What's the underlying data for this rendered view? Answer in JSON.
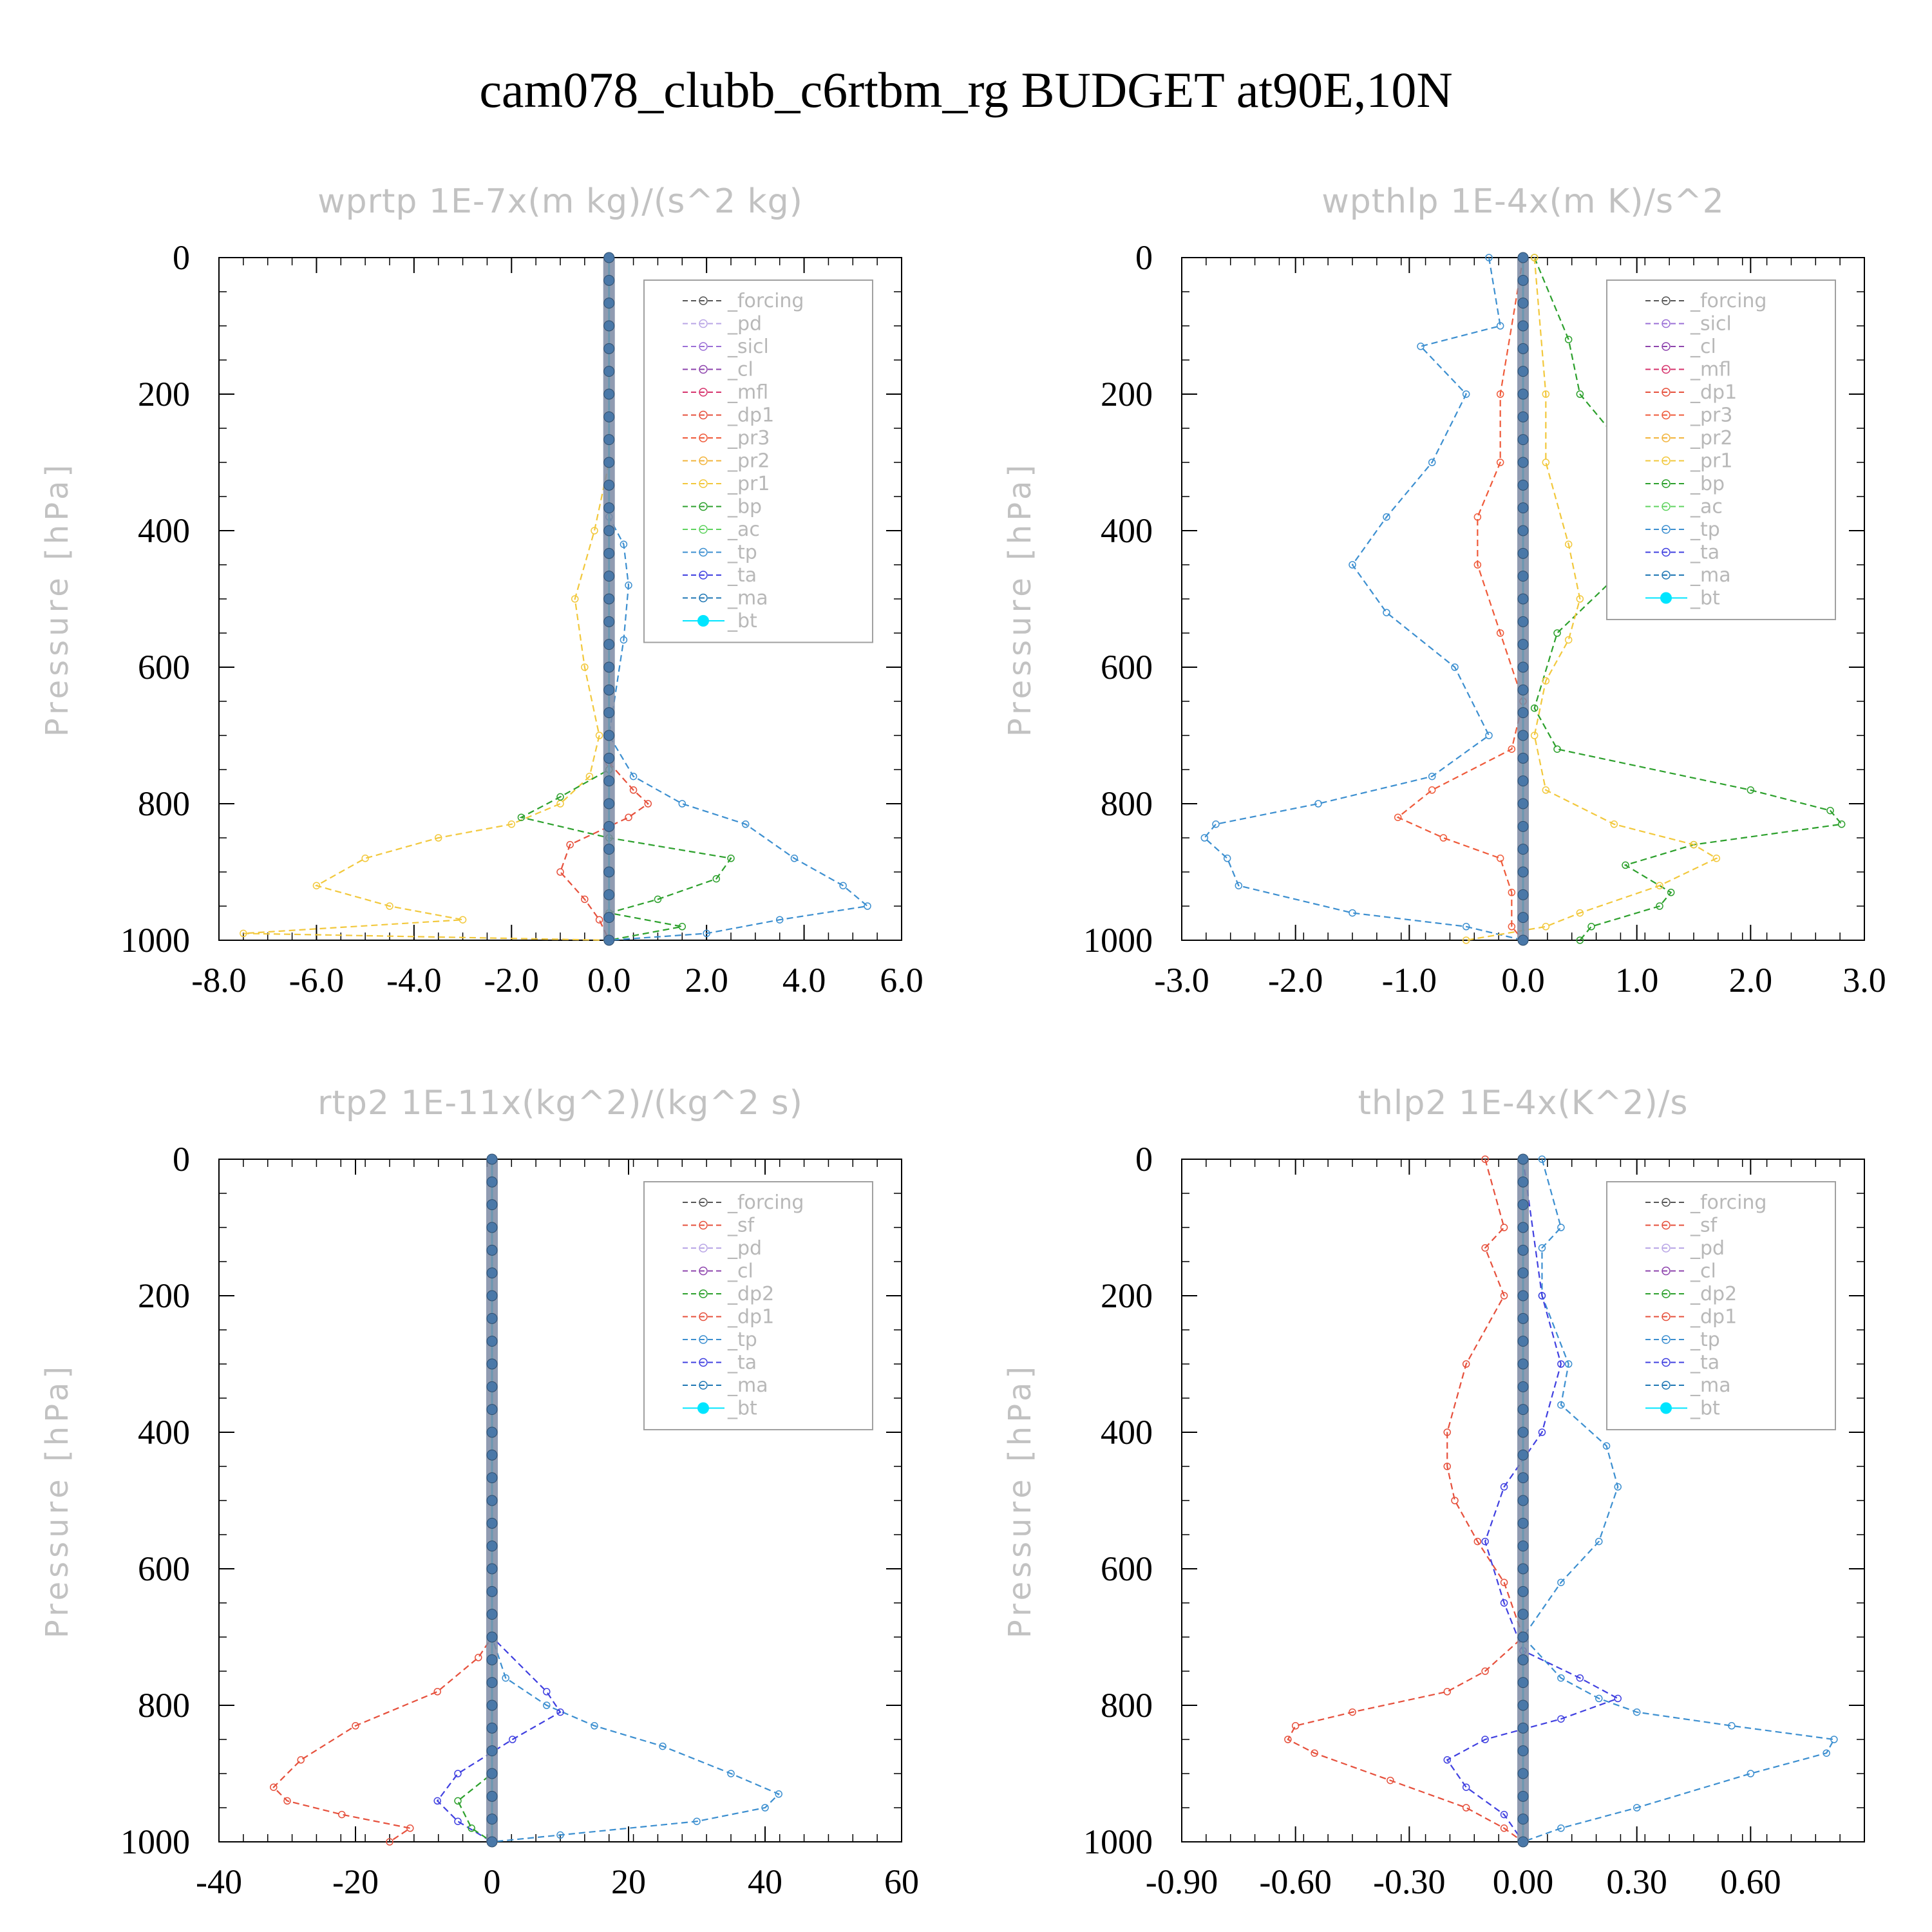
{
  "title": "cam078_clubb_c6rtbm_rg  BUDGET at90E,10N",
  "colors": {
    "forcing": "#555555",
    "pd": "#b9a6e6",
    "sicl": "#9b6fd6",
    "cl": "#8e44ad",
    "mfl": "#d6336c",
    "dp1": "#e6503c",
    "pr3": "#ef5a3a",
    "pr2": "#f2b43c",
    "pr1": "#f2c83c",
    "bp": "#2ca02c",
    "ac": "#5fd35f",
    "tp": "#3c8fd0",
    "ta": "#4040e0",
    "ma": "#1f77b4",
    "bt": "#00e5ff",
    "sf": "#e6503c",
    "dp2": "#2ca02c"
  },
  "chart_data": [
    {
      "type": "line",
      "title": "wprtp  1E-7x(m kg)/(s^2 kg)",
      "ylabel": "Pressure [hPa]",
      "xlim": [
        -8,
        6
      ],
      "ylim": [
        1000,
        0
      ],
      "xticks": [
        "-8.0",
        "-6.0",
        "-4.0",
        "-2.0",
        "0.0",
        "2.0",
        "4.0",
        "6.0"
      ],
      "yticks": [
        "0",
        "200",
        "400",
        "600",
        "800",
        "1000"
      ],
      "legend_position": "upper-right",
      "legend": [
        "_forcing",
        "_pd",
        "_sicl",
        "_cl",
        "_mfl",
        "_dp1",
        "_pr3",
        "_pr2",
        "_pr1",
        "_bp",
        "_ac",
        "_tp",
        "_ta",
        "_ma",
        "_bt"
      ],
      "series": [
        {
          "name": "_pr1",
          "y": [
            0,
            300,
            400,
            500,
            600,
            700,
            760,
            800,
            830,
            850,
            880,
            920,
            950,
            970,
            990,
            1000
          ],
          "x": [
            0,
            0,
            -0.3,
            -0.7,
            -0.5,
            -0.2,
            -0.4,
            -1.0,
            -2.0,
            -3.5,
            -5.0,
            -6.0,
            -4.5,
            -3.0,
            -7.5,
            0
          ]
        },
        {
          "name": "_bp",
          "y": [
            0,
            700,
            750,
            790,
            820,
            850,
            880,
            910,
            940,
            960,
            980,
            1000
          ],
          "x": [
            0,
            0,
            0,
            -1.0,
            -1.8,
            0,
            2.5,
            2.2,
            1.0,
            0,
            1.5,
            0
          ]
        },
        {
          "name": "_dp1",
          "y": [
            0,
            740,
            780,
            800,
            820,
            860,
            900,
            940,
            970,
            1000
          ],
          "x": [
            0,
            0,
            0.5,
            0.8,
            0.4,
            -0.8,
            -1.0,
            -0.5,
            -0.2,
            0
          ]
        },
        {
          "name": "_tp",
          "y": [
            0,
            380,
            420,
            480,
            560,
            700,
            760,
            800,
            830,
            880,
            920,
            950,
            970,
            990,
            1000
          ],
          "x": [
            0,
            0,
            0.3,
            0.4,
            0.3,
            0,
            0.5,
            1.5,
            2.8,
            3.8,
            4.8,
            5.3,
            3.5,
            2.0,
            0
          ]
        },
        {
          "name": "_bt",
          "y": [
            0,
            1000
          ],
          "x": [
            0,
            0
          ]
        }
      ]
    },
    {
      "type": "line",
      "title": "wpthlp  1E-4x(m K)/s^2",
      "ylabel": "Pressure [hPa]",
      "xlim": [
        -3,
        3
      ],
      "ylim": [
        1000,
        0
      ],
      "xticks": [
        "-3.0",
        "-2.0",
        "-1.0",
        "0.0",
        "1.0",
        "2.0",
        "3.0"
      ],
      "yticks": [
        "0",
        "200",
        "400",
        "600",
        "800",
        "1000"
      ],
      "legend_position": "upper-right",
      "legend": [
        "_forcing",
        "_sicl",
        "_cl",
        "_mfl",
        "_dp1",
        "_pr3",
        "_pr2",
        "_pr1",
        "_bp",
        "_ac",
        "_tp",
        "_ta",
        "_ma",
        "_bt"
      ],
      "series": [
        {
          "name": "_tp",
          "y": [
            0,
            100,
            130,
            200,
            300,
            380,
            450,
            520,
            600,
            700,
            760,
            800,
            830,
            850,
            880,
            920,
            960,
            980,
            1000
          ],
          "x": [
            -0.3,
            -0.2,
            -0.9,
            -0.5,
            -0.8,
            -1.2,
            -1.5,
            -1.2,
            -0.6,
            -0.3,
            -0.8,
            -1.8,
            -2.7,
            -2.8,
            -2.6,
            -2.5,
            -1.5,
            -0.5,
            0
          ]
        },
        {
          "name": "_bp",
          "y": [
            0,
            120,
            200,
            300,
            400,
            470,
            550,
            660,
            720,
            780,
            810,
            830,
            860,
            890,
            930,
            950,
            980,
            1000
          ],
          "x": [
            0.1,
            0.4,
            0.5,
            1.0,
            1.2,
            0.8,
            0.3,
            0.1,
            0.3,
            2.0,
            2.7,
            2.8,
            1.5,
            0.9,
            1.3,
            1.2,
            0.6,
            0.5
          ]
        },
        {
          "name": "_pr1",
          "y": [
            0,
            200,
            300,
            420,
            500,
            560,
            620,
            700,
            780,
            830,
            860,
            880,
            920,
            960,
            980,
            1000
          ],
          "x": [
            0.1,
            0.2,
            0.2,
            0.4,
            0.5,
            0.4,
            0.2,
            0.1,
            0.2,
            0.8,
            1.5,
            1.7,
            1.2,
            0.5,
            0.2,
            -0.5
          ]
        },
        {
          "name": "_pr3",
          "y": [
            0,
            200,
            300,
            380,
            450,
            550,
            650,
            720,
            780,
            820,
            850,
            880,
            930,
            980,
            1000
          ],
          "x": [
            0,
            -0.2,
            -0.2,
            -0.4,
            -0.4,
            -0.2,
            0,
            -0.1,
            -0.8,
            -1.1,
            -0.7,
            -0.2,
            -0.1,
            -0.1,
            0
          ]
        },
        {
          "name": "_bt",
          "y": [
            0,
            1000
          ],
          "x": [
            0,
            0
          ]
        }
      ]
    },
    {
      "type": "line",
      "title": "rtp2  1E-11x(kg^2)/(kg^2 s)",
      "ylabel": "Pressure [hPa]",
      "xlim": [
        -40,
        60
      ],
      "ylim": [
        1000,
        0
      ],
      "xticks": [
        "-40",
        "-20",
        "0",
        "20",
        "40",
        "60"
      ],
      "yticks": [
        "0",
        "200",
        "400",
        "600",
        "800",
        "1000"
      ],
      "legend_position": "upper-right",
      "legend": [
        "_forcing",
        "_sf",
        "_pd",
        "_cl",
        "_dp2",
        "_dp1",
        "_tp",
        "_ta",
        "_ma",
        "_bt"
      ],
      "series": [
        {
          "name": "_dp1",
          "y": [
            0,
            700,
            730,
            780,
            830,
            880,
            920,
            940,
            960,
            980,
            1000
          ],
          "x": [
            0,
            0,
            -2,
            -8,
            -20,
            -28,
            -32,
            -30,
            -22,
            -12,
            -15
          ]
        },
        {
          "name": "_tp",
          "y": [
            0,
            700,
            760,
            800,
            830,
            860,
            900,
            930,
            950,
            970,
            990,
            1000
          ],
          "x": [
            0,
            0,
            2,
            8,
            15,
            25,
            35,
            42,
            40,
            30,
            10,
            0
          ]
        },
        {
          "name": "_ta",
          "y": [
            0,
            700,
            780,
            810,
            850,
            900,
            940,
            970,
            1000
          ],
          "x": [
            0,
            0,
            8,
            10,
            3,
            -5,
            -8,
            -5,
            0
          ]
        },
        {
          "name": "_dp2",
          "y": [
            0,
            900,
            940,
            980,
            1000
          ],
          "x": [
            0,
            0,
            -5,
            -3,
            0
          ]
        },
        {
          "name": "_bt",
          "y": [
            0,
            1000
          ],
          "x": [
            0,
            0
          ]
        }
      ]
    },
    {
      "type": "line",
      "title": "thlp2  1E-4x(K^2)/s",
      "ylabel": "Pressure [hPa]",
      "xlim": [
        -0.9,
        0.9
      ],
      "ylim": [
        1000,
        0
      ],
      "xticks": [
        "-0.90",
        "-0.60",
        "-0.30",
        "0.00",
        "0.30",
        "0.60"
      ],
      "yticks": [
        "0",
        "200",
        "400",
        "600",
        "800",
        "1000"
      ],
      "legend_position": "upper-right",
      "legend": [
        "_forcing",
        "_sf",
        "_pd",
        "_cl",
        "_dp2",
        "_dp1",
        "_tp",
        "_ta",
        "_ma",
        "_bt"
      ],
      "series": [
        {
          "name": "_dp1",
          "y": [
            0,
            100,
            130,
            200,
            300,
            400,
            450,
            500,
            560,
            620,
            700,
            750,
            780,
            810,
            830,
            850,
            870,
            910,
            950,
            980,
            1000
          ],
          "x": [
            -0.1,
            -0.05,
            -0.1,
            -0.05,
            -0.15,
            -0.2,
            -0.2,
            -0.18,
            -0.12,
            -0.05,
            0,
            -0.1,
            -0.2,
            -0.45,
            -0.6,
            -0.62,
            -0.55,
            -0.35,
            -0.15,
            -0.05,
            0
          ]
        },
        {
          "name": "_tp",
          "y": [
            0,
            100,
            130,
            200,
            300,
            360,
            420,
            480,
            560,
            620,
            700,
            760,
            790,
            810,
            830,
            850,
            870,
            900,
            950,
            980,
            1000
          ],
          "x": [
            0.05,
            0.1,
            0.05,
            0.05,
            0.12,
            0.1,
            0.22,
            0.25,
            0.2,
            0.1,
            0,
            0.1,
            0.2,
            0.3,
            0.55,
            0.82,
            0.8,
            0.6,
            0.3,
            0.1,
            0
          ]
        },
        {
          "name": "_ta",
          "y": [
            0,
            200,
            300,
            400,
            480,
            560,
            650,
            720,
            760,
            790,
            820,
            850,
            880,
            920,
            960,
            1000
          ],
          "x": [
            0,
            0.05,
            0.1,
            0.05,
            -0.05,
            -0.1,
            -0.05,
            0,
            0.15,
            0.25,
            0.1,
            -0.1,
            -0.2,
            -0.15,
            -0.05,
            0
          ]
        },
        {
          "name": "_bt",
          "y": [
            0,
            1000
          ],
          "x": [
            0,
            0
          ]
        }
      ]
    }
  ]
}
